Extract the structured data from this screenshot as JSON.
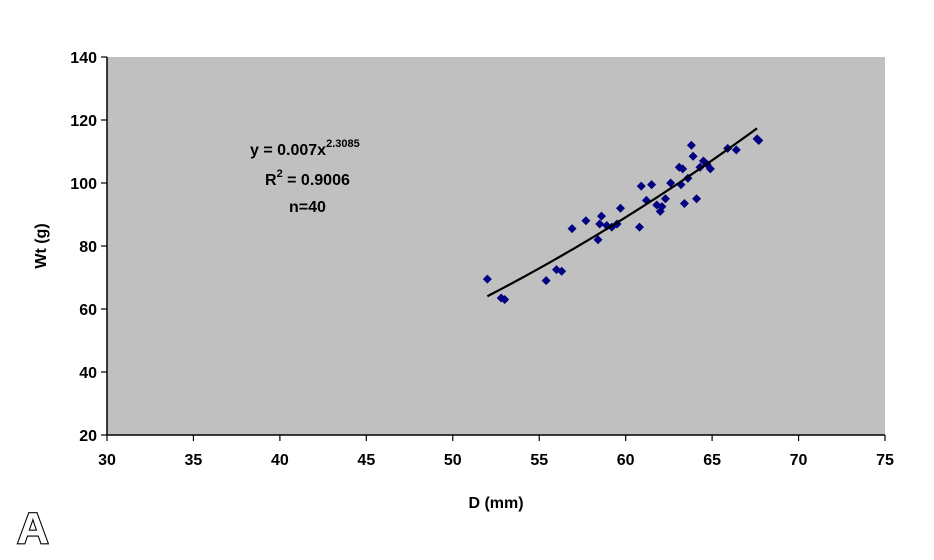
{
  "panel_label": "A",
  "annotation": {
    "equation_prefix": "y = 0.007x",
    "equation_exponent": "2.3085",
    "r2_prefix": "R",
    "r2_exponent": "2",
    "r2_suffix": " = 0.9006",
    "n_text": "n=40"
  },
  "chart_data": {
    "type": "scatter",
    "title": "",
    "xlabel": "D (mm)",
    "ylabel": "Wt (g)",
    "xlim": [
      30,
      75
    ],
    "ylim": [
      20,
      140
    ],
    "x_ticks": [
      30,
      35,
      40,
      45,
      50,
      55,
      60,
      65,
      70,
      75
    ],
    "y_ticks": [
      20,
      40,
      60,
      80,
      100,
      120,
      140
    ],
    "grid": false,
    "legend": "none",
    "plot_background": "#c0c0c0",
    "marker_color": "#000080",
    "trendline_color": "#000000",
    "trendline": {
      "type": "power",
      "a": 0.007,
      "b": 2.3085,
      "x_range": [
        52,
        67.6
      ],
      "r2": 0.9006
    },
    "series": [
      {
        "points": [
          [
            52.0,
            69.5
          ],
          [
            52.8,
            63.5
          ],
          [
            53.0,
            63.0
          ],
          [
            55.4,
            69.0
          ],
          [
            56.0,
            72.5
          ],
          [
            56.3,
            72.0
          ],
          [
            56.9,
            85.5
          ],
          [
            57.7,
            88.0
          ],
          [
            58.4,
            82.0
          ],
          [
            58.5,
            87.0
          ],
          [
            58.6,
            89.5
          ],
          [
            58.9,
            86.5
          ],
          [
            59.2,
            86.0
          ],
          [
            59.5,
            87.0
          ],
          [
            59.7,
            92.0
          ],
          [
            60.8,
            86.0
          ],
          [
            60.9,
            99.0
          ],
          [
            61.2,
            94.5
          ],
          [
            61.5,
            99.5
          ],
          [
            61.8,
            93.0
          ],
          [
            62.0,
            91.0
          ],
          [
            62.1,
            92.5
          ],
          [
            62.3,
            95.0
          ],
          [
            62.6,
            100.0
          ],
          [
            63.1,
            105.0
          ],
          [
            63.2,
            99.5
          ],
          [
            63.3,
            104.5
          ],
          [
            63.4,
            93.5
          ],
          [
            63.6,
            101.5
          ],
          [
            63.8,
            112.0
          ],
          [
            63.9,
            108.5
          ],
          [
            64.1,
            95.0
          ],
          [
            64.3,
            105.0
          ],
          [
            64.5,
            107.0
          ],
          [
            64.7,
            106.0
          ],
          [
            64.9,
            104.5
          ],
          [
            65.9,
            111.0
          ],
          [
            66.4,
            110.5
          ],
          [
            67.6,
            114.0
          ],
          [
            67.7,
            113.5
          ]
        ]
      }
    ]
  }
}
